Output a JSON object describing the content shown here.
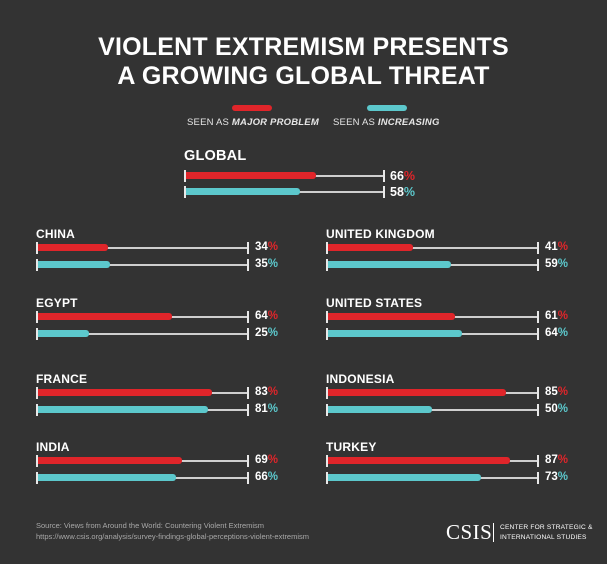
{
  "title_lines": [
    "VIOLENT EXTREMISM PRESENTS",
    "A GROWING GLOBAL THREAT"
  ],
  "legend": {
    "major": {
      "prefix": "SEEN AS ",
      "emph": "MAJOR PROBLEM",
      "color": "#e0252a"
    },
    "increasing": {
      "prefix": "SEEN AS ",
      "emph": "INCREASING",
      "color": "#5cc8cc"
    }
  },
  "percent_symbol": "%",
  "chart_data": {
    "type": "bar",
    "title": "VIOLENT EXTREMISM PRESENTS A GROWING GLOBAL THREAT",
    "categories": [
      "GLOBAL",
      "CHINA",
      "UNITED KINGDOM",
      "EGYPT",
      "UNITED STATES",
      "FRANCE",
      "INDONESIA",
      "INDIA",
      "TURKEY"
    ],
    "series": [
      {
        "name": "SEEN AS MAJOR PROBLEM",
        "values": [
          66,
          34,
          41,
          64,
          61,
          83,
          85,
          69,
          87
        ]
      },
      {
        "name": "SEEN AS INCREASING",
        "values": [
          58,
          35,
          59,
          25,
          64,
          81,
          50,
          66,
          73
        ]
      }
    ],
    "ylim": [
      0,
      100
    ],
    "colors": {
      "major": "#e0252a",
      "increasing": "#5cc8cc"
    }
  },
  "panels": [
    {
      "name": "GLOBAL",
      "major": 66,
      "increasing": 58
    },
    {
      "name": "CHINA",
      "major": 34,
      "increasing": 35
    },
    {
      "name": "UNITED KINGDOM",
      "major": 41,
      "increasing": 59
    },
    {
      "name": "EGYPT",
      "major": 64,
      "increasing": 25
    },
    {
      "name": "UNITED STATES",
      "major": 61,
      "increasing": 64
    },
    {
      "name": "FRANCE",
      "major": 83,
      "increasing": 81
    },
    {
      "name": "INDONESIA",
      "major": 85,
      "increasing": 50
    },
    {
      "name": "INDIA",
      "major": 69,
      "increasing": 66
    },
    {
      "name": "TURKEY",
      "major": 87,
      "increasing": 73
    }
  ],
  "footer": {
    "source": "Source:  Views from Around the World: Countering Violent Extremism",
    "url": "https://www.csis.org/analysis/survey-findings-global-perceptions-violent-extremism"
  },
  "logo": {
    "wordmark": "CSIS",
    "line1": "CENTER FOR STRATEGIC &",
    "line2": "INTERNATIONAL STUDIES"
  }
}
